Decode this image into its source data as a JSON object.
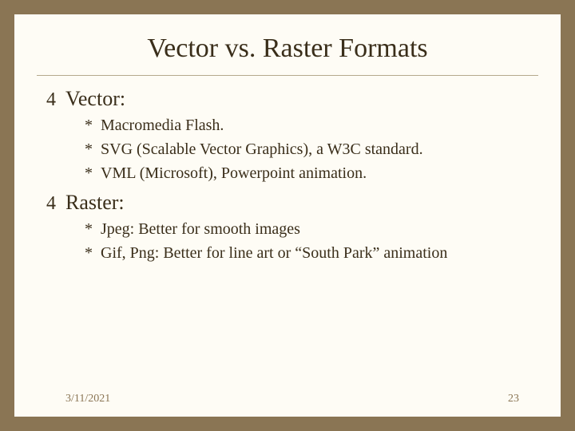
{
  "slide": {
    "title": "Vector vs. Raster Formats",
    "background_outer": "#8a7554",
    "background_inner": "#fefcf5",
    "text_color": "#3a2e1a",
    "hr_color": "#b5a98d",
    "title_fontsize": 34,
    "section_fontsize": 26,
    "item_fontsize": 20,
    "sections": [
      {
        "heading": "Vector:",
        "items": [
          "Macromedia Flash.",
          "SVG (Scalable Vector Graphics), a W3C standard.",
          "VML (Microsoft), Powerpoint animation."
        ]
      },
      {
        "heading": "Raster:",
        "items": [
          "Jpeg: Better for smooth images",
          "Gif, Png: Better for line art or “South Park” animation"
        ]
      }
    ],
    "footer": {
      "date": "3/11/2021",
      "page": "23",
      "color": "#8a7554",
      "fontsize": 14
    }
  }
}
